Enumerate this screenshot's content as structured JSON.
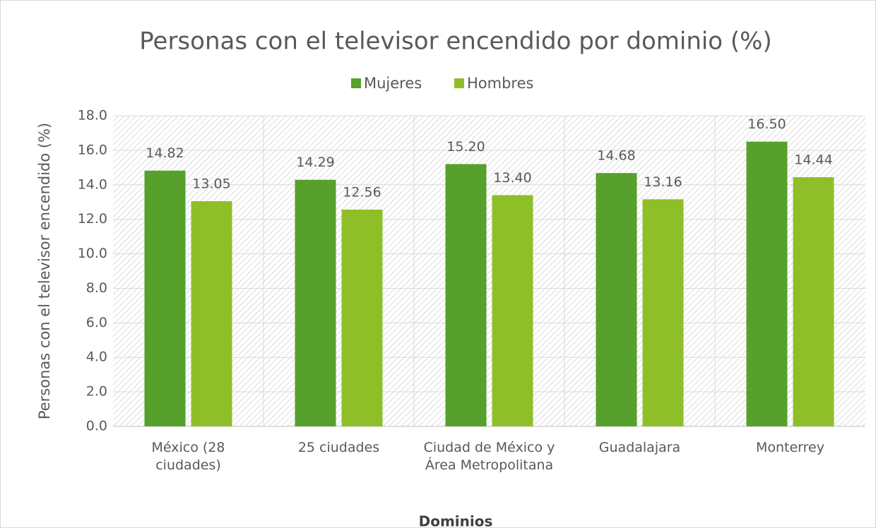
{
  "chart_data": {
    "type": "bar",
    "title": "Personas con el televisor encendido por dominio (%)",
    "x_label": "Dominios",
    "y_label": "Personas con el televisor encendido (%)",
    "categories": [
      "México (28 ciudades)",
      "25 ciudades",
      "Ciudad de México y Área Metropolitana",
      "Guadalajara",
      "Monterrey"
    ],
    "series": [
      {
        "name": "Mujeres",
        "color": "#56a02b",
        "values": [
          14.82,
          14.29,
          15.2,
          14.68,
          16.5
        ],
        "value_labels": [
          "14.82",
          "14.29",
          "15.20",
          "14.68",
          "16.50"
        ]
      },
      {
        "name": "Hombres",
        "color": "#8fbf28",
        "values": [
          13.05,
          12.56,
          13.4,
          13.16,
          14.44
        ],
        "value_labels": [
          "13.05",
          "12.56",
          "13.40",
          "13.16",
          "14.44"
        ]
      }
    ],
    "ylim": [
      0,
      18
    ],
    "yticks": [
      {
        "value": 0,
        "label": "0.0"
      },
      {
        "value": 2,
        "label": "2.0"
      },
      {
        "value": 4,
        "label": "4.0"
      },
      {
        "value": 6,
        "label": "6.0"
      },
      {
        "value": 8,
        "label": "8.0"
      },
      {
        "value": 10,
        "label": "10.0"
      },
      {
        "value": 12,
        "label": "12.0"
      },
      {
        "value": 14,
        "label": "14.0"
      },
      {
        "value": 16,
        "label": "16.0"
      },
      {
        "value": 18,
        "label": "18.0"
      }
    ],
    "grid": true,
    "legend": "top"
  }
}
